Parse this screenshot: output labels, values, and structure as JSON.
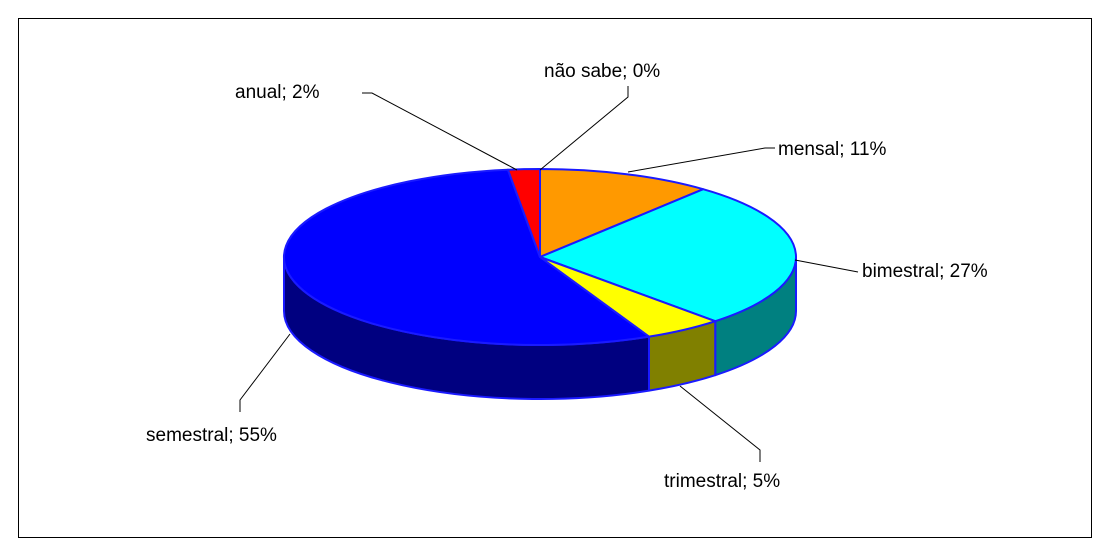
{
  "chart_data": {
    "type": "pie3d",
    "values": [
      11,
      27,
      5,
      55,
      2,
      0
    ],
    "value_labels": [
      "mensal; 11%",
      "bimestral; 27%",
      "trimestral; 5%",
      "semestral; 55%",
      "anual; 2%",
      "não sabe; 0%"
    ],
    "colors": [
      "#ff9900",
      "#00ffff",
      "#ffff00",
      "#0000ff",
      "#ff0000",
      "#800080"
    ],
    "side_colors": [
      "#805000",
      "#008080",
      "#808000",
      "#000080",
      "#800000",
      "#400040"
    ]
  }
}
